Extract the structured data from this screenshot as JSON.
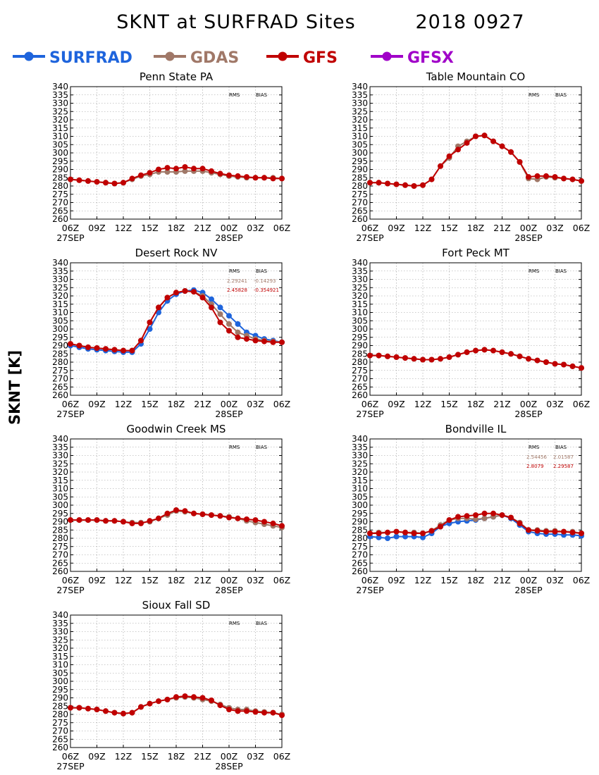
{
  "figure": {
    "title": "SKNT at SURFRAD Sites",
    "date": "2018 0927",
    "ylabel": "SKNT [K]"
  },
  "legend": [
    {
      "name": "SURFRAD",
      "color": "#1e64dc"
    },
    {
      "name": "GDAS",
      "color": "#a07868"
    },
    {
      "name": "GFS",
      "color": "#c00000"
    },
    {
      "name": "GFSX",
      "color": "#a000c8"
    }
  ],
  "stats_headers": {
    "rms": "RMS",
    "bias": "BIAS"
  },
  "x_ticks": [
    "06Z",
    "09Z",
    "12Z",
    "15Z",
    "18Z",
    "21Z",
    "00Z",
    "03Z",
    "06Z"
  ],
  "x_dates": [
    {
      "label": "27SEP",
      "tick": 0
    },
    {
      "label": "28SEP",
      "tick": 6
    }
  ],
  "chart_data": [
    {
      "type": "line",
      "title": "Penn State PA",
      "x_hours": [
        0,
        1,
        2,
        3,
        4,
        5,
        6,
        7,
        8,
        9,
        10,
        11,
        12,
        13,
        14,
        15,
        16,
        17,
        18,
        19,
        20,
        21,
        22,
        23,
        24
      ],
      "ylim": [
        260,
        340
      ],
      "ytick_step": 5,
      "grid": true,
      "series": [
        {
          "name": "GDAS",
          "values": [
            284,
            283.5,
            283,
            282.5,
            282,
            281.5,
            282,
            284,
            286,
            287,
            288.5,
            288.5,
            288.5,
            289,
            289,
            289,
            288,
            287,
            286,
            285.5,
            285,
            285,
            285,
            285,
            284.5
          ]
        },
        {
          "name": "GFS",
          "values": [
            284,
            283.5,
            283,
            282.5,
            282,
            281.5,
            282,
            284.5,
            286.5,
            288,
            290,
            291,
            290.5,
            291.5,
            290.5,
            290.5,
            289,
            287.5,
            286.5,
            286,
            285.5,
            285,
            285,
            284.5,
            284.5
          ]
        }
      ],
      "stats": []
    },
    {
      "type": "line",
      "title": "Table Mountain CO",
      "x_hours": [
        0,
        1,
        2,
        3,
        4,
        5,
        6,
        7,
        8,
        9,
        10,
        11,
        12,
        13,
        14,
        15,
        16,
        17,
        18,
        19,
        20,
        21,
        22,
        23,
        24
      ],
      "ylim": [
        260,
        340
      ],
      "ytick_step": 5,
      "grid": true,
      "series": [
        {
          "name": "GDAS",
          "values": [
            282,
            282,
            281.5,
            281,
            280.5,
            280,
            280.5,
            284,
            292,
            297,
            304,
            307,
            310,
            310.5,
            307,
            304,
            300.5,
            294.5,
            284.5,
            284,
            285.5,
            285,
            284.5,
            284,
            283
          ]
        },
        {
          "name": "GFS",
          "values": [
            282,
            282,
            281.5,
            281,
            280.5,
            280,
            280.5,
            284,
            292,
            298,
            302,
            306,
            310,
            310.5,
            307,
            304,
            300.5,
            294.5,
            285.5,
            286,
            286,
            285.5,
            284.5,
            284,
            283
          ]
        }
      ],
      "stats": []
    },
    {
      "type": "line",
      "title": "Desert Rock NV",
      "x_hours": [
        0,
        1,
        2,
        3,
        4,
        5,
        6,
        7,
        8,
        9,
        10,
        11,
        12,
        13,
        14,
        15,
        16,
        17,
        18,
        19,
        20,
        21,
        22,
        23,
        24
      ],
      "ylim": [
        260,
        340
      ],
      "ytick_step": 5,
      "grid": true,
      "series": [
        {
          "name": "SURFRAD",
          "values": [
            290,
            289,
            288,
            287.5,
            287,
            286.5,
            286,
            286,
            291,
            300,
            310,
            317,
            321,
            323,
            323.5,
            322,
            318,
            313,
            308,
            303,
            298,
            296,
            294,
            293,
            292
          ]
        },
        {
          "name": "GDAS",
          "values": [
            291,
            290,
            289,
            288.5,
            288,
            287.5,
            287,
            287,
            293,
            304,
            313,
            319,
            322,
            323,
            322.5,
            320,
            315,
            309,
            303,
            298,
            296,
            294,
            293,
            292.5,
            292
          ]
        },
        {
          "name": "GFS",
          "values": [
            291,
            290,
            289,
            288.5,
            288,
            287.5,
            287,
            287,
            293,
            304,
            313,
            319,
            322,
            323,
            322.5,
            319,
            313,
            304,
            299,
            295,
            294,
            293,
            292.5,
            292,
            292
          ]
        }
      ],
      "stats": [
        {
          "series": "GDAS",
          "rms": "2.29241",
          "bias": "-0.14293"
        },
        {
          "series": "GFS",
          "rms": "2.45828",
          "bias": "-0.354921"
        }
      ]
    },
    {
      "type": "line",
      "title": "Fort Peck MT",
      "x_hours": [
        0,
        1,
        2,
        3,
        4,
        5,
        6,
        7,
        8,
        9,
        10,
        11,
        12,
        13,
        14,
        15,
        16,
        17,
        18,
        19,
        20,
        21,
        22,
        23,
        24
      ],
      "ylim": [
        260,
        340
      ],
      "ytick_step": 5,
      "grid": true,
      "series": [
        {
          "name": "GDAS",
          "values": [
            284,
            284,
            283.5,
            283,
            282.5,
            282,
            281.5,
            281.5,
            282,
            283,
            284.5,
            286,
            287,
            287.5,
            287,
            286,
            285,
            283.5,
            282,
            281,
            280,
            279,
            278.5,
            277.5,
            276.5
          ]
        },
        {
          "name": "GFS",
          "values": [
            284,
            284,
            283.5,
            283,
            282.5,
            282,
            281.5,
            281.5,
            282,
            283,
            284.5,
            286,
            287,
            287.5,
            287,
            286,
            285,
            283.5,
            282,
            281,
            280,
            279,
            278.5,
            277.5,
            276.5
          ]
        }
      ],
      "stats": []
    },
    {
      "type": "line",
      "title": "Goodwin Creek MS",
      "x_hours": [
        0,
        1,
        2,
        3,
        4,
        5,
        6,
        7,
        8,
        9,
        10,
        11,
        12,
        13,
        14,
        15,
        16,
        17,
        18,
        19,
        20,
        21,
        22,
        23,
        24
      ],
      "ylim": [
        260,
        340
      ],
      "ytick_step": 5,
      "grid": true,
      "series": [
        {
          "name": "GDAS",
          "values": [
            291,
            291,
            291,
            291,
            290.5,
            290.5,
            290,
            289.5,
            289.5,
            290,
            292,
            294,
            296.5,
            296,
            295,
            294.5,
            294,
            293.5,
            293,
            292,
            290.5,
            289.5,
            288.5,
            287.5,
            286.5
          ]
        },
        {
          "name": "GFS",
          "values": [
            291,
            291,
            291,
            291,
            290.5,
            290.5,
            290,
            289,
            289,
            290.5,
            292,
            295,
            297,
            296.5,
            295,
            294.5,
            294,
            293.5,
            292.5,
            292,
            291.5,
            291,
            290,
            289,
            287.5
          ]
        }
      ],
      "stats": []
    },
    {
      "type": "line",
      "title": "Bondville IL",
      "x_hours": [
        0,
        1,
        2,
        3,
        4,
        5,
        6,
        7,
        8,
        9,
        10,
        11,
        12,
        13,
        14,
        15,
        16,
        17,
        18,
        19,
        20,
        21,
        22,
        23,
        24
      ],
      "ylim": [
        260,
        340
      ],
      "ytick_step": 5,
      "grid": true,
      "series": [
        {
          "name": "SURFRAD",
          "values": [
            281,
            280.5,
            280,
            281,
            281,
            281,
            280.5,
            283,
            287,
            289,
            290,
            290.5,
            291,
            292,
            293,
            294,
            292,
            288,
            284,
            283,
            282.5,
            282.5,
            282,
            282,
            281.5
          ]
        },
        {
          "name": "GDAS",
          "values": [
            283,
            283.5,
            283.5,
            284,
            283.5,
            283.5,
            283,
            284.5,
            288,
            291,
            292,
            292,
            291.5,
            292,
            293,
            294,
            292.5,
            289.5,
            285,
            285,
            284.5,
            284.5,
            284,
            284,
            283
          ]
        },
        {
          "name": "GFS",
          "values": [
            283,
            283,
            283.5,
            284,
            283.5,
            283,
            283,
            284.5,
            287,
            291,
            293,
            293.5,
            294,
            295,
            295,
            294,
            292.5,
            289,
            285,
            284.5,
            284,
            284,
            284,
            283.5,
            283
          ]
        }
      ],
      "stats": [
        {
          "series": "GDAS",
          "rms": "2.54456",
          "bias": "2.01587"
        },
        {
          "series": "GFS",
          "rms": "2.8079",
          "bias": "2.29587"
        }
      ]
    },
    {
      "type": "line",
      "title": "Sioux Fall SD",
      "x_hours": [
        0,
        1,
        2,
        3,
        4,
        5,
        6,
        7,
        8,
        9,
        10,
        11,
        12,
        13,
        14,
        15,
        16,
        17,
        18,
        19,
        20,
        21,
        22,
        23,
        24
      ],
      "ylim": [
        260,
        340
      ],
      "ytick_step": 5,
      "grid": true,
      "series": [
        {
          "name": "GDAS",
          "values": [
            284,
            284,
            283.5,
            283,
            282,
            281,
            280.5,
            281,
            284.5,
            286.5,
            288,
            289,
            290,
            290.5,
            290,
            289,
            288,
            286,
            284,
            283,
            283,
            282,
            281.5,
            281,
            280
          ]
        },
        {
          "name": "GFS",
          "values": [
            284,
            284,
            283.5,
            283,
            282,
            281,
            280.5,
            281,
            284.5,
            286.5,
            288,
            289,
            290.5,
            291,
            290.5,
            290,
            288.5,
            285.5,
            283,
            282,
            282,
            281.5,
            281,
            281,
            279.5
          ]
        }
      ],
      "stats": []
    }
  ]
}
